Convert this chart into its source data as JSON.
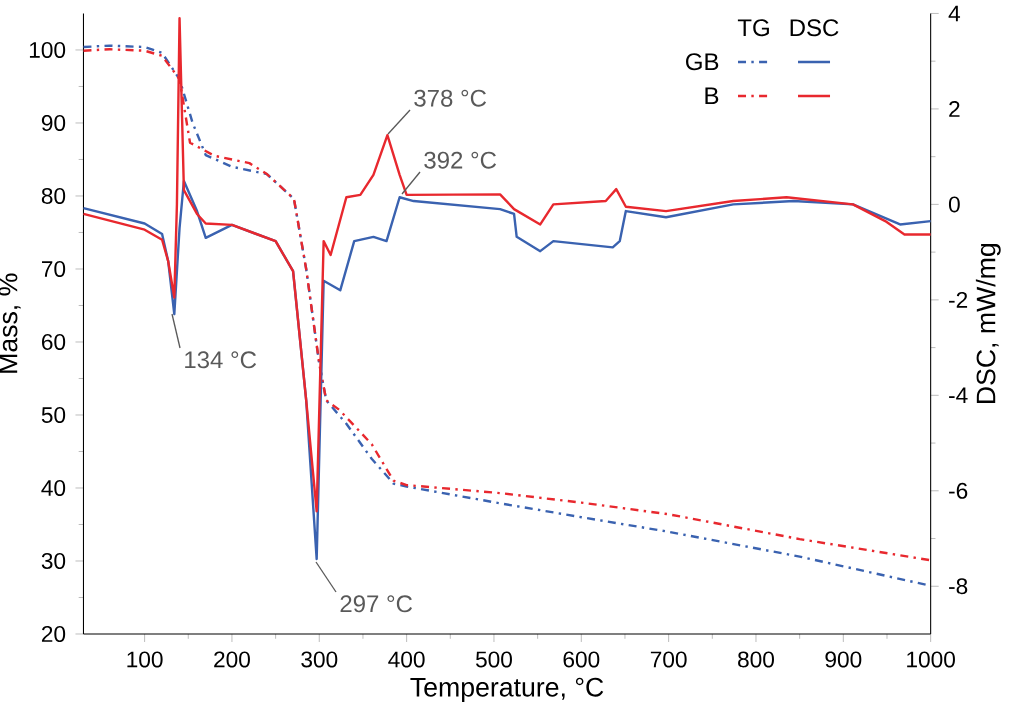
{
  "chart_data": {
    "type": "line",
    "xlabel": "Temperature, °C",
    "ylabel": "Mass, %",
    "y2label": "DSC, mW/mg",
    "xlim": [
      30,
      1000
    ],
    "xticks": [
      100,
      200,
      300,
      400,
      500,
      600,
      700,
      800,
      900,
      1000
    ],
    "ylim": [
      20,
      105
    ],
    "yticks": [
      20,
      30,
      40,
      50,
      60,
      70,
      80,
      90,
      100
    ],
    "y2lim": [
      -9,
      4
    ],
    "y2ticks": [
      -8,
      -6,
      -4,
      -2,
      0,
      2,
      4
    ],
    "legend": "top right",
    "legend_title": "TG",
    "series": [
      {
        "name": "GB",
        "color": "#3a62b0",
        "line_style": "dashdot",
        "x": [
          30,
          60,
          100,
          120,
          140,
          155,
          170,
          200,
          240,
          271,
          285,
          300,
          308,
          331,
          360,
          385,
          400,
          507,
          600,
          700,
          850,
          1000
        ],
        "values": [
          100.4,
          100.6,
          100.4,
          99.6,
          96,
          90,
          85.6,
          84,
          83,
          79.6,
          70,
          57,
          52,
          48.8,
          44,
          40.6,
          40.2,
          37.9,
          36,
          34,
          30.6,
          26.6
        ]
      },
      {
        "name": "B",
        "color": "#e8282e",
        "line_style": "dashdot",
        "x": [
          30,
          60,
          100,
          120,
          140,
          152,
          180,
          220,
          240,
          271,
          285,
          300,
          308,
          323,
          360,
          385,
          400,
          507,
          600,
          700,
          850,
          1000
        ],
        "values": [
          99.9,
          100.1,
          99.9,
          99.2,
          96,
          87.3,
          85.5,
          84.5,
          83,
          79.6,
          70,
          57,
          52,
          50.7,
          46,
          41,
          40.4,
          39.3,
          38,
          36.4,
          33,
          30.1
        ]
      },
      {
        "color": "#3a62b0",
        "line_style": "solid",
        "axis": "y2",
        "x": [
          30,
          100,
          120,
          127,
          134,
          140,
          145,
          160,
          170,
          200,
          250,
          270,
          285,
          297,
          305,
          324,
          340,
          362,
          377,
          392,
          408,
          507,
          523,
          526,
          553,
          568,
          636,
          644,
          651,
          697,
          774,
          843,
          911,
          965,
          1000
        ],
        "values": [
          -0.08,
          -0.4,
          -0.62,
          -1.19,
          -2.3,
          -0.5,
          0.49,
          -0.14,
          -0.7,
          -0.43,
          -0.77,
          -1.4,
          -4.1,
          -7.43,
          -1.6,
          -1.8,
          -0.77,
          -0.68,
          -0.77,
          0.15,
          0.07,
          -0.1,
          -0.2,
          -0.68,
          -0.98,
          -0.77,
          -0.9,
          -0.77,
          -0.14,
          -0.27,
          0,
          0.07,
          0,
          -0.42,
          -0.35
        ]
      },
      {
        "color": "#e8282e",
        "line_style": "solid",
        "axis": "y2",
        "x": [
          30,
          100,
          120,
          127,
          134,
          137,
          140,
          145,
          160,
          170,
          200,
          250,
          270,
          285,
          297,
          305,
          313,
          331,
          347,
          362,
          378,
          392,
          400,
          507,
          523,
          553,
          568,
          628,
          640,
          651,
          697,
          774,
          835,
          911,
          948,
          970,
          1000
        ],
        "values": [
          -0.2,
          -0.53,
          -0.74,
          -1.19,
          -1.95,
          0,
          3.9,
          0.3,
          -0.2,
          -0.4,
          -0.43,
          -0.77,
          -1.4,
          -4.1,
          -6.43,
          -0.77,
          -1.06,
          0.15,
          0.2,
          0.62,
          1.45,
          0.62,
          0.2,
          0.21,
          -0.1,
          -0.42,
          0,
          0.07,
          0.32,
          -0.05,
          -0.14,
          0.07,
          0.15,
          0,
          -0.35,
          -0.63,
          -0.63
        ]
      }
    ],
    "annotations": [
      "DSC",
      "134 °C",
      "297 °C",
      "378 °C",
      "392 °C"
    ]
  }
}
